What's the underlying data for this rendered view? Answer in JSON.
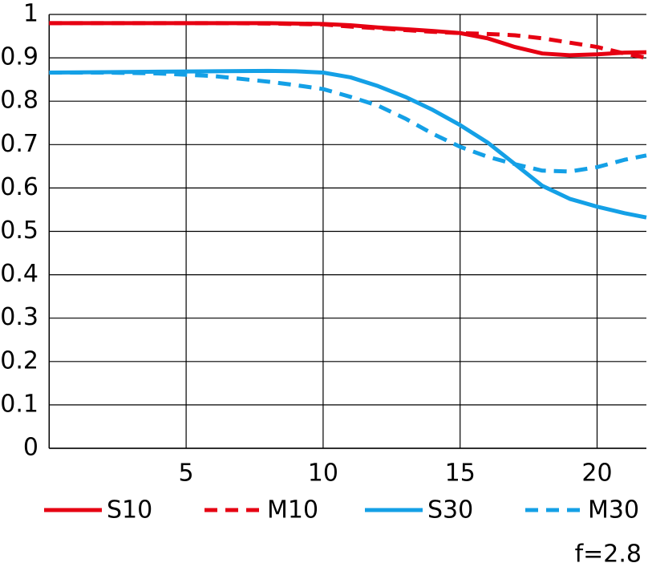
{
  "chart_data": {
    "type": "line",
    "x": [
      0,
      2,
      4,
      6,
      8,
      9,
      10,
      11,
      12,
      13,
      14,
      15,
      16,
      17,
      18,
      19,
      20,
      21,
      21.8
    ],
    "series": [
      {
        "name": "S10",
        "color": "#e60012",
        "style": "solid",
        "values": [
          0.98,
          0.98,
          0.98,
          0.98,
          0.98,
          0.979,
          0.978,
          0.975,
          0.97,
          0.966,
          0.962,
          0.957,
          0.945,
          0.925,
          0.91,
          0.906,
          0.908,
          0.912,
          0.913
        ]
      },
      {
        "name": "M10",
        "color": "#e60012",
        "style": "dashed",
        "values": [
          0.98,
          0.98,
          0.98,
          0.98,
          0.979,
          0.978,
          0.977,
          0.972,
          0.968,
          0.964,
          0.96,
          0.957,
          0.955,
          0.952,
          0.945,
          0.935,
          0.925,
          0.91,
          0.9
        ]
      },
      {
        "name": "S30",
        "color": "#14a0e6",
        "style": "solid",
        "values": [
          0.866,
          0.867,
          0.868,
          0.869,
          0.87,
          0.869,
          0.866,
          0.855,
          0.835,
          0.81,
          0.78,
          0.745,
          0.705,
          0.655,
          0.605,
          0.575,
          0.557,
          0.542,
          0.532
        ]
      },
      {
        "name": "M30",
        "color": "#14a0e6",
        "style": "dashed",
        "values": [
          0.866,
          0.866,
          0.864,
          0.858,
          0.845,
          0.837,
          0.828,
          0.81,
          0.79,
          0.76,
          0.725,
          0.695,
          0.672,
          0.655,
          0.64,
          0.638,
          0.648,
          0.665,
          0.675
        ]
      }
    ],
    "xlim": [
      0,
      21.8
    ],
    "xticks": [
      5,
      10,
      15,
      20
    ],
    "ylim": [
      0,
      1
    ],
    "yticks": [
      0,
      0.1,
      0.2,
      0.3,
      0.4,
      0.5,
      0.6,
      0.7,
      0.8,
      0.9,
      1
    ],
    "grid": true,
    "annotation": "f=2.8"
  }
}
